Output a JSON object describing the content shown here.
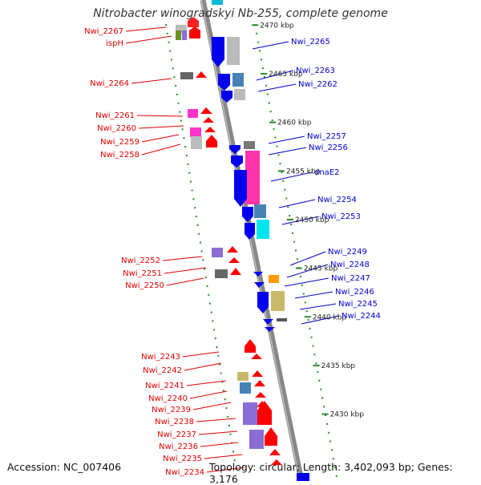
{
  "title": "Nitrobacter winogradskyi Nb-255, complete genome",
  "accession": "Accession: NC_007406",
  "topology": "Topology: circular; Length: 3,402,093 bp; Genes: 3,176",
  "colors": {
    "left_label": "#e00000",
    "right_label": "#0000cc",
    "backbone": "#888888",
    "dots": "#2a8a2a"
  },
  "kbp_marks": [
    {
      "label": "2470 kbp",
      "pos": 2470
    },
    {
      "label": "2465 kbp",
      "pos": 2465
    },
    {
      "label": "2460 kbp",
      "pos": 2460
    },
    {
      "label": "2455 kbp",
      "pos": 2455
    },
    {
      "label": "2450 kbp",
      "pos": 2450
    },
    {
      "label": "2445 kbp",
      "pos": 2445
    },
    {
      "label": "2440 kbp",
      "pos": 2440
    },
    {
      "label": "2435 kbp",
      "pos": 2435
    },
    {
      "label": "2430 kbp",
      "pos": 2430
    }
  ],
  "left_labels": [
    "Nwi_2267",
    "ispH",
    "Nwi_2264",
    "Nwi_2261",
    "Nwi_2260",
    "Nwi_2259",
    "Nwi_2258",
    "Nwi_2252",
    "Nwi_2251",
    "Nwi_2250",
    "Nwi_2243",
    "Nwi_2242",
    "Nwi_2241",
    "Nwi_2240",
    "Nwi_2239",
    "Nwi_2238",
    "Nwi_2237",
    "Nwi_2236",
    "Nwi_2235",
    "Nwi_2234"
  ],
  "right_labels": [
    "Nwi_2265",
    "Nwi_2263",
    "Nwi_2262",
    "Nwi_2257",
    "Nwi_2256",
    "dnaE2",
    "Nwi_2254",
    "Nwi_2253",
    "Nwi_2249",
    "Nwi_2248",
    "Nwi_2247",
    "Nwi_2246",
    "Nwi_2245",
    "Nwi_2244"
  ]
}
